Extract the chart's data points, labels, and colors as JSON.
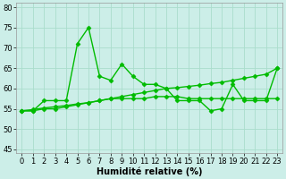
{
  "xlabel": "Humidité relative (%)",
  "background_color": "#cceee8",
  "grid_color": "#aaddcc",
  "line_color": "#00bb00",
  "x_values": [
    0,
    1,
    2,
    3,
    4,
    5,
    6,
    7,
    8,
    9,
    10,
    11,
    12,
    13,
    14,
    15,
    16,
    17,
    18,
    19,
    20,
    21,
    22,
    23
  ],
  "y_main": [
    54.5,
    54.5,
    57,
    57,
    57,
    71,
    75,
    63,
    62,
    66,
    63,
    61,
    61,
    60,
    57,
    57,
    57,
    54.5,
    55,
    61,
    57,
    57,
    57,
    65
  ],
  "y_low": [
    54.5,
    54.5,
    55,
    55,
    55.5,
    56,
    56.5,
    57,
    57.5,
    57.5,
    57.5,
    57.5,
    58,
    58,
    58,
    57.5,
    57.5,
    57.5,
    57.5,
    57.5,
    57.5,
    57.5,
    57.5,
    57.5
  ],
  "y_trend": [
    54.5,
    54.8,
    55.2,
    55.5,
    55.8,
    56.2,
    56.5,
    57.0,
    57.5,
    58.0,
    58.5,
    59.0,
    59.5,
    60.0,
    60.2,
    60.5,
    60.8,
    61.2,
    61.5,
    62.0,
    62.5,
    63.0,
    63.5,
    65.0
  ],
  "ylim": [
    44,
    81
  ],
  "xlim": [
    -0.5,
    23.5
  ],
  "yticks": [
    45,
    50,
    55,
    60,
    65,
    70,
    75,
    80
  ],
  "xticks": [
    0,
    1,
    2,
    3,
    4,
    5,
    6,
    7,
    8,
    9,
    10,
    11,
    12,
    13,
    14,
    15,
    16,
    17,
    18,
    19,
    20,
    21,
    22,
    23
  ],
  "markersize": 2.5,
  "linewidth": 1.0,
  "xlabel_fontsize": 7,
  "tick_fontsize": 6
}
